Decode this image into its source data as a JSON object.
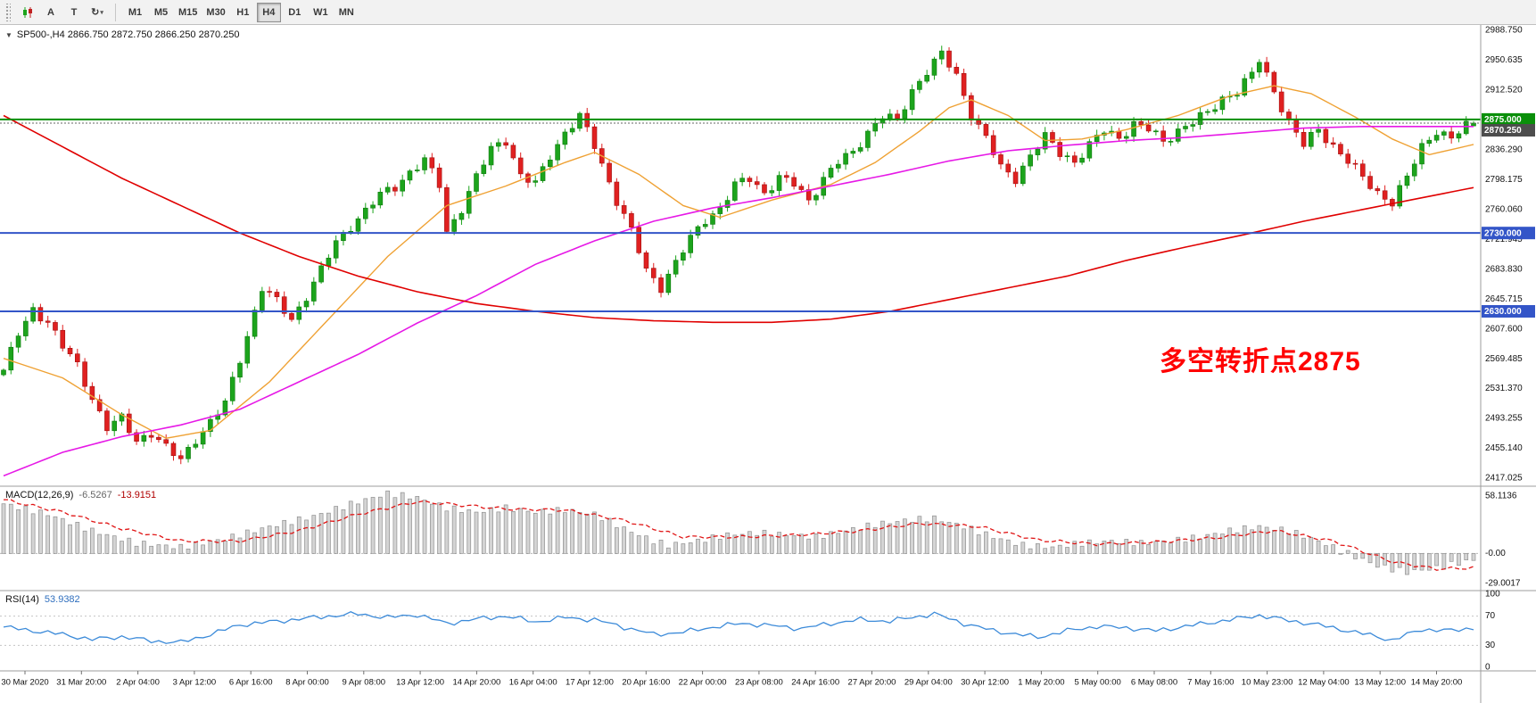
{
  "toolbar": {
    "text_tool_label": "A",
    "label_tool_label": "T",
    "cycle_icon": "↻",
    "dropdown_arrow": "▾",
    "timeframes": [
      "M1",
      "M5",
      "M15",
      "M30",
      "H1",
      "H4",
      "D1",
      "W1",
      "MN"
    ],
    "active_timeframe": "H4"
  },
  "chart": {
    "collapse_arrow": "▼",
    "symbol_info": "SP500-,H4 2866.750 2872.750 2866.250 2870.250",
    "annotation_text": "多空转折点2875",
    "annotation_color": "#ff0000"
  },
  "chart_data": {
    "type": "candlestick",
    "symbol": "SP500-",
    "timeframe": "H4",
    "bars": 200,
    "ohlc_current": {
      "open": 2866.75,
      "high": 2872.75,
      "low": 2866.25,
      "close": 2870.25
    },
    "current_label": "2870.250",
    "current_badge_color": "#4d4d4d",
    "price_axis": {
      "max": 2988.75,
      "min": 2414.715,
      "labels": [
        2988.75,
        2950.635,
        2912.52,
        2836.29,
        2798.175,
        2760.06,
        2721.945,
        2683.83,
        2645.715,
        2607.6,
        2569.485,
        2531.37,
        2493.255,
        2455.14,
        2417.025
      ]
    },
    "hlines": [
      {
        "price": 2875,
        "label": "2875.000",
        "color": "#0a8f0a"
      },
      {
        "price": 2730,
        "label": "2730.000",
        "color": "#3355c8"
      },
      {
        "price": 2630,
        "label": "2630.000",
        "color": "#3355c8"
      }
    ],
    "close_anchors": [
      [
        0,
        2555
      ],
      [
        2,
        2600
      ],
      [
        4,
        2632
      ],
      [
        6,
        2618
      ],
      [
        8,
        2585
      ],
      [
        10,
        2560
      ],
      [
        12,
        2520
      ],
      [
        14,
        2482
      ],
      [
        16,
        2492
      ],
      [
        18,
        2465
      ],
      [
        20,
        2476
      ],
      [
        22,
        2455
      ],
      [
        24,
        2440
      ],
      [
        26,
        2468
      ],
      [
        28,
        2488
      ],
      [
        30,
        2512
      ],
      [
        32,
        2570
      ],
      [
        34,
        2630
      ],
      [
        35,
        2660
      ],
      [
        37,
        2642
      ],
      [
        39,
        2620
      ],
      [
        41,
        2650
      ],
      [
        43,
        2682
      ],
      [
        45,
        2718
      ],
      [
        47,
        2740
      ],
      [
        49,
        2758
      ],
      [
        51,
        2778
      ],
      [
        53,
        2790
      ],
      [
        55,
        2808
      ],
      [
        57,
        2822
      ],
      [
        59,
        2792
      ],
      [
        60,
        2732
      ],
      [
        62,
        2762
      ],
      [
        64,
        2800
      ],
      [
        66,
        2838
      ],
      [
        68,
        2850
      ],
      [
        70,
        2802
      ],
      [
        72,
        2792
      ],
      [
        74,
        2830
      ],
      [
        76,
        2858
      ],
      [
        78,
        2878
      ],
      [
        80,
        2842
      ],
      [
        83,
        2772
      ],
      [
        85,
        2732
      ],
      [
        87,
        2682
      ],
      [
        89,
        2662
      ],
      [
        91,
        2692
      ],
      [
        93,
        2722
      ],
      [
        95,
        2748
      ],
      [
        97,
        2762
      ],
      [
        99,
        2790
      ],
      [
        101,
        2800
      ],
      [
        103,
        2782
      ],
      [
        105,
        2800
      ],
      [
        107,
        2792
      ],
      [
        109,
        2772
      ],
      [
        111,
        2800
      ],
      [
        113,
        2820
      ],
      [
        115,
        2832
      ],
      [
        117,
        2860
      ],
      [
        119,
        2880
      ],
      [
        121,
        2872
      ],
      [
        123,
        2912
      ],
      [
        125,
        2938
      ],
      [
        127,
        2958
      ],
      [
        129,
        2930
      ],
      [
        131,
        2882
      ],
      [
        133,
        2852
      ],
      [
        135,
        2812
      ],
      [
        137,
        2800
      ],
      [
        139,
        2830
      ],
      [
        141,
        2852
      ],
      [
        143,
        2832
      ],
      [
        145,
        2822
      ],
      [
        147,
        2842
      ],
      [
        149,
        2860
      ],
      [
        151,
        2852
      ],
      [
        153,
        2870
      ],
      [
        155,
        2862
      ],
      [
        157,
        2846
      ],
      [
        159,
        2862
      ],
      [
        161,
        2872
      ],
      [
        163,
        2882
      ],
      [
        165,
        2902
      ],
      [
        167,
        2912
      ],
      [
        169,
        2932
      ],
      [
        170,
        2950
      ],
      [
        172,
        2912
      ],
      [
        174,
        2872
      ],
      [
        176,
        2842
      ],
      [
        178,
        2862
      ],
      [
        180,
        2842
      ],
      [
        182,
        2822
      ],
      [
        184,
        2800
      ],
      [
        186,
        2782
      ],
      [
        188,
        2770
      ],
      [
        190,
        2800
      ],
      [
        192,
        2840
      ],
      [
        194,
        2862
      ],
      [
        196,
        2850
      ],
      [
        198,
        2866
      ],
      [
        199,
        2870.25
      ]
    ],
    "ma_red": [
      [
        0,
        2880
      ],
      [
        8,
        2840
      ],
      [
        16,
        2800
      ],
      [
        24,
        2765
      ],
      [
        32,
        2730
      ],
      [
        40,
        2700
      ],
      [
        48,
        2675
      ],
      [
        56,
        2655
      ],
      [
        64,
        2640
      ],
      [
        72,
        2630
      ],
      [
        80,
        2622
      ],
      [
        88,
        2618
      ],
      [
        96,
        2616
      ],
      [
        104,
        2616
      ],
      [
        112,
        2620
      ],
      [
        120,
        2630
      ],
      [
        128,
        2645
      ],
      [
        136,
        2660
      ],
      [
        144,
        2675
      ],
      [
        152,
        2695
      ],
      [
        160,
        2712
      ],
      [
        168,
        2728
      ],
      [
        176,
        2745
      ],
      [
        184,
        2760
      ],
      [
        192,
        2775
      ],
      [
        199,
        2788
      ]
    ],
    "ma_magenta": [
      [
        0,
        2420
      ],
      [
        8,
        2450
      ],
      [
        16,
        2470
      ],
      [
        24,
        2485
      ],
      [
        32,
        2505
      ],
      [
        40,
        2540
      ],
      [
        48,
        2575
      ],
      [
        56,
        2615
      ],
      [
        64,
        2650
      ],
      [
        72,
        2690
      ],
      [
        80,
        2720
      ],
      [
        88,
        2745
      ],
      [
        96,
        2762
      ],
      [
        104,
        2775
      ],
      [
        112,
        2790
      ],
      [
        120,
        2805
      ],
      [
        128,
        2822
      ],
      [
        136,
        2835
      ],
      [
        144,
        2842
      ],
      [
        152,
        2848
      ],
      [
        160,
        2852
      ],
      [
        168,
        2858
      ],
      [
        176,
        2864
      ],
      [
        184,
        2866
      ],
      [
        192,
        2866
      ],
      [
        199,
        2866
      ]
    ],
    "ma_orange": [
      [
        0,
        2570
      ],
      [
        8,
        2545
      ],
      [
        16,
        2498
      ],
      [
        22,
        2468
      ],
      [
        28,
        2478
      ],
      [
        36,
        2540
      ],
      [
        44,
        2620
      ],
      [
        52,
        2700
      ],
      [
        60,
        2765
      ],
      [
        68,
        2790
      ],
      [
        76,
        2820
      ],
      [
        80,
        2833
      ],
      [
        86,
        2805
      ],
      [
        92,
        2765
      ],
      [
        97,
        2750
      ],
      [
        104,
        2772
      ],
      [
        112,
        2792
      ],
      [
        118,
        2820
      ],
      [
        124,
        2860
      ],
      [
        128,
        2890
      ],
      [
        131,
        2900
      ],
      [
        136,
        2880
      ],
      [
        141,
        2848
      ],
      [
        146,
        2850
      ],
      [
        152,
        2862
      ],
      [
        159,
        2880
      ],
      [
        166,
        2905
      ],
      [
        172,
        2918
      ],
      [
        177,
        2908
      ],
      [
        183,
        2878
      ],
      [
        188,
        2850
      ],
      [
        193,
        2830
      ],
      [
        199,
        2843
      ]
    ],
    "macd": {
      "name": "MACD(12,26,9)",
      "value_main": "-6.5267",
      "value_signal": "-13.9151",
      "max": 58.1136,
      "min": -29.0017,
      "axis_labels": [
        "58.1136",
        "-0.00",
        "-29.0017"
      ],
      "main_anchors": [
        [
          0,
          48
        ],
        [
          6,
          38
        ],
        [
          12,
          22
        ],
        [
          18,
          10
        ],
        [
          24,
          6
        ],
        [
          30,
          14
        ],
        [
          36,
          26
        ],
        [
          42,
          36
        ],
        [
          48,
          50
        ],
        [
          52,
          58
        ],
        [
          56,
          54
        ],
        [
          60,
          44
        ],
        [
          64,
          40
        ],
        [
          68,
          44
        ],
        [
          72,
          40
        ],
        [
          76,
          42
        ],
        [
          80,
          38
        ],
        [
          84,
          24
        ],
        [
          88,
          12
        ],
        [
          90,
          8
        ],
        [
          94,
          12
        ],
        [
          98,
          18
        ],
        [
          102,
          20
        ],
        [
          106,
          18
        ],
        [
          110,
          16
        ],
        [
          114,
          22
        ],
        [
          118,
          28
        ],
        [
          122,
          32
        ],
        [
          126,
          34
        ],
        [
          130,
          26
        ],
        [
          134,
          16
        ],
        [
          138,
          8
        ],
        [
          142,
          6
        ],
        [
          146,
          10
        ],
        [
          150,
          12
        ],
        [
          154,
          10
        ],
        [
          158,
          12
        ],
        [
          162,
          16
        ],
        [
          166,
          22
        ],
        [
          170,
          26
        ],
        [
          174,
          22
        ],
        [
          178,
          12
        ],
        [
          182,
          0
        ],
        [
          186,
          -12
        ],
        [
          190,
          -18
        ],
        [
          194,
          -14
        ],
        [
          197,
          -9
        ],
        [
          199,
          -6.5
        ]
      ],
      "signal_anchors": [
        [
          0,
          52
        ],
        [
          8,
          40
        ],
        [
          16,
          24
        ],
        [
          24,
          12
        ],
        [
          32,
          12
        ],
        [
          40,
          22
        ],
        [
          48,
          38
        ],
        [
          56,
          50
        ],
        [
          60,
          48
        ],
        [
          68,
          43
        ],
        [
          76,
          42
        ],
        [
          84,
          32
        ],
        [
          92,
          16
        ],
        [
          100,
          16
        ],
        [
          108,
          18
        ],
        [
          116,
          22
        ],
        [
          124,
          29
        ],
        [
          132,
          26
        ],
        [
          140,
          13
        ],
        [
          148,
          9
        ],
        [
          156,
          11
        ],
        [
          164,
          15
        ],
        [
          172,
          22
        ],
        [
          180,
          12
        ],
        [
          188,
          -8
        ],
        [
          194,
          -15
        ],
        [
          199,
          -13.9
        ]
      ]
    },
    "rsi": {
      "name": "RSI(14)",
      "value": "53.9382",
      "levels": [
        100,
        70,
        30,
        0
      ],
      "anchors": [
        [
          0,
          55
        ],
        [
          4,
          50
        ],
        [
          8,
          45
        ],
        [
          12,
          38
        ],
        [
          16,
          42
        ],
        [
          20,
          36
        ],
        [
          24,
          34
        ],
        [
          28,
          45
        ],
        [
          32,
          58
        ],
        [
          36,
          62
        ],
        [
          40,
          66
        ],
        [
          44,
          70
        ],
        [
          48,
          73
        ],
        [
          52,
          68
        ],
        [
          56,
          72
        ],
        [
          60,
          60
        ],
        [
          64,
          66
        ],
        [
          68,
          70
        ],
        [
          72,
          62
        ],
        [
          76,
          68
        ],
        [
          80,
          65
        ],
        [
          84,
          55
        ],
        [
          88,
          45
        ],
        [
          92,
          48
        ],
        [
          96,
          55
        ],
        [
          100,
          60
        ],
        [
          104,
          57
        ],
        [
          108,
          53
        ],
        [
          112,
          60
        ],
        [
          116,
          65
        ],
        [
          120,
          63
        ],
        [
          124,
          70
        ],
        [
          126,
          73
        ],
        [
          130,
          60
        ],
        [
          134,
          50
        ],
        [
          138,
          44
        ],
        [
          140,
          41
        ],
        [
          144,
          50
        ],
        [
          148,
          56
        ],
        [
          152,
          54
        ],
        [
          156,
          50
        ],
        [
          160,
          56
        ],
        [
          164,
          62
        ],
        [
          168,
          68
        ],
        [
          170,
          71
        ],
        [
          174,
          64
        ],
        [
          178,
          58
        ],
        [
          182,
          50
        ],
        [
          186,
          42
        ],
        [
          188,
          37
        ],
        [
          192,
          52
        ],
        [
          196,
          50
        ],
        [
          199,
          54
        ]
      ]
    },
    "time_labels": [
      "30 Mar 2020",
      "31 Mar 20:00",
      "2 Apr 04:00",
      "3 Apr 12:00",
      "6 Apr 16:00",
      "8 Apr 00:00",
      "9 Apr 08:00",
      "13 Apr 12:00",
      "14 Apr 20:00",
      "16 Apr 04:00",
      "17 Apr 12:00",
      "20 Apr 16:00",
      "22 Apr 00:00",
      "23 Apr 08:00",
      "24 Apr 16:00",
      "27 Apr 20:00",
      "29 Apr 04:00",
      "30 Apr 12:00",
      "1 May 20:00",
      "5 May 00:00",
      "6 May 08:00",
      "7 May 16:00",
      "10 May 23:00",
      "12 May 04:00",
      "13 May 12:00",
      "14 May 20:00"
    ],
    "colors": {
      "bull": "#1ca41c",
      "bear": "#e02020",
      "ma_red": "#e00000",
      "ma_magenta": "#e619e6",
      "ma_orange": "#efa133",
      "macd_hist": "#d4d4d4",
      "macd_hist_border": "#8f8f8f",
      "macd_signal": "#e01515",
      "rsi_line": "#3b8ad9"
    }
  }
}
